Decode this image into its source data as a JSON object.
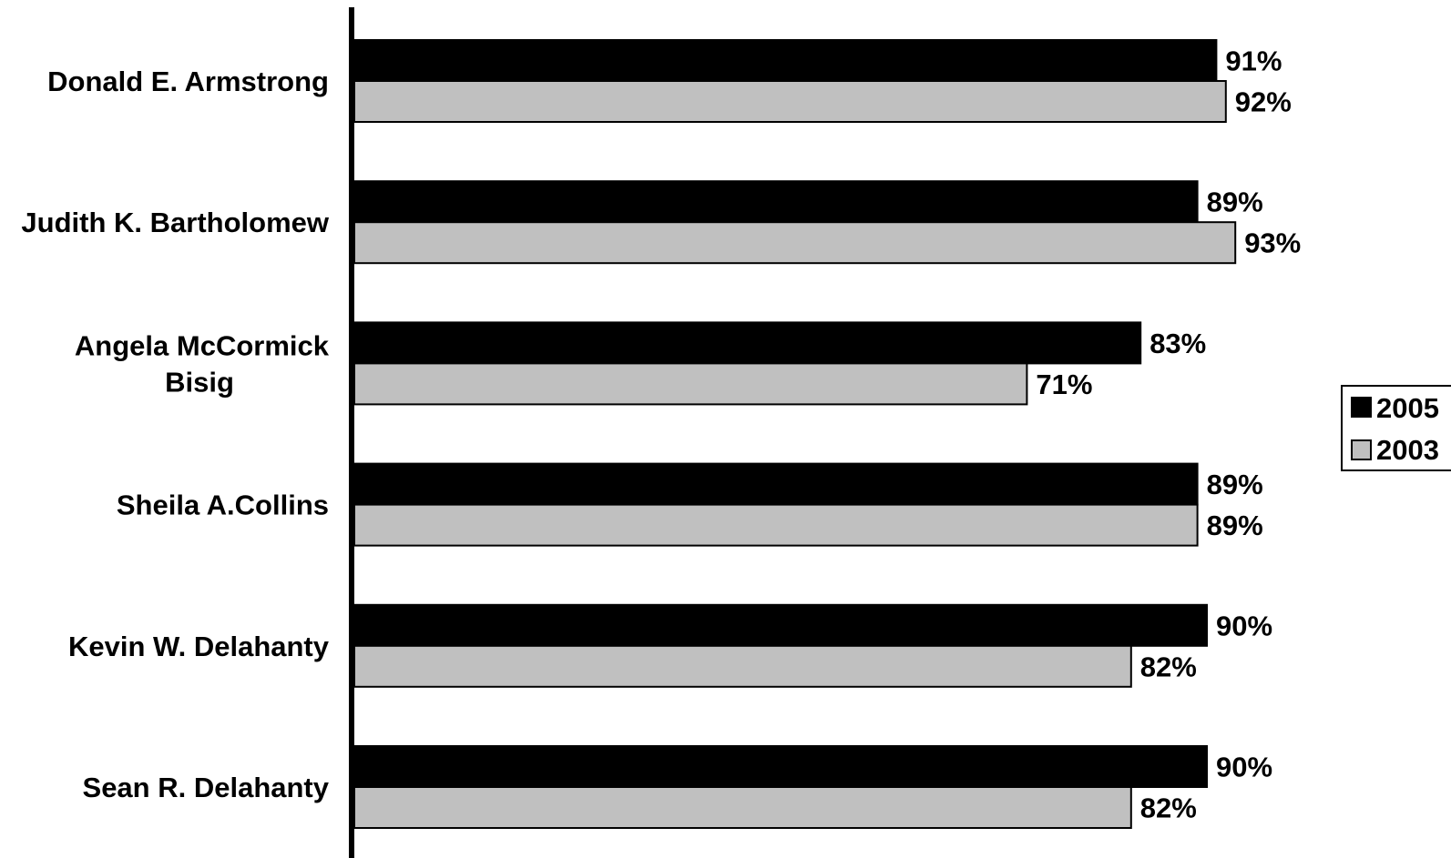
{
  "chart_data": {
    "type": "bar",
    "orientation": "horizontal",
    "categories": [
      [
        "Donald E. Armstrong"
      ],
      [
        "Judith K. Bartholomew"
      ],
      [
        "Angela McCormick",
        "Bisig"
      ],
      [
        "Sheila A.Collins"
      ],
      [
        "Kevin W. Delahanty"
      ],
      [
        "Sean R. Delahanty"
      ]
    ],
    "series": [
      {
        "name": "2005",
        "color": "#000000",
        "values": [
          91,
          89,
          83,
          89,
          90,
          90
        ],
        "labels": [
          "91%",
          "89%",
          "83%",
          "89%",
          "90%",
          "90%"
        ]
      },
      {
        "name": "2003",
        "color": "#c0c0c0",
        "values": [
          92,
          93,
          71,
          89,
          82,
          82
        ],
        "labels": [
          "92%",
          "93%",
          "71%",
          "89%",
          "82%",
          "82%"
        ]
      }
    ],
    "xlim": [
      0,
      100
    ],
    "grid": false,
    "legend_position": "right"
  }
}
